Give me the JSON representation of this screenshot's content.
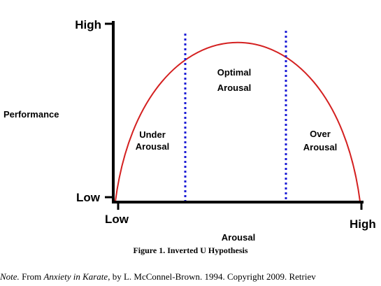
{
  "diagram": {
    "y_axis": {
      "label": "Performance",
      "high": "High",
      "low": "Low"
    },
    "x_axis": {
      "label": "Arousal",
      "high": "High",
      "low": "Low"
    },
    "regions": {
      "under": [
        "Under",
        "Arousal"
      ],
      "optimal": [
        "Optimal",
        "Arousal"
      ],
      "over": [
        "Over",
        "Arousal"
      ]
    },
    "colors": {
      "curve": "#d42020",
      "dividers": "#1c1cd6",
      "axes": "#000000"
    }
  },
  "caption": "Figure 1. Inverted U Hypothesis",
  "note": {
    "prefix": "Note.",
    "from": " From ",
    "title": "Anxiety in Karate",
    "rest": ", by L. McConnel-Brown. 1994. Copyright 2009. Retriev"
  }
}
